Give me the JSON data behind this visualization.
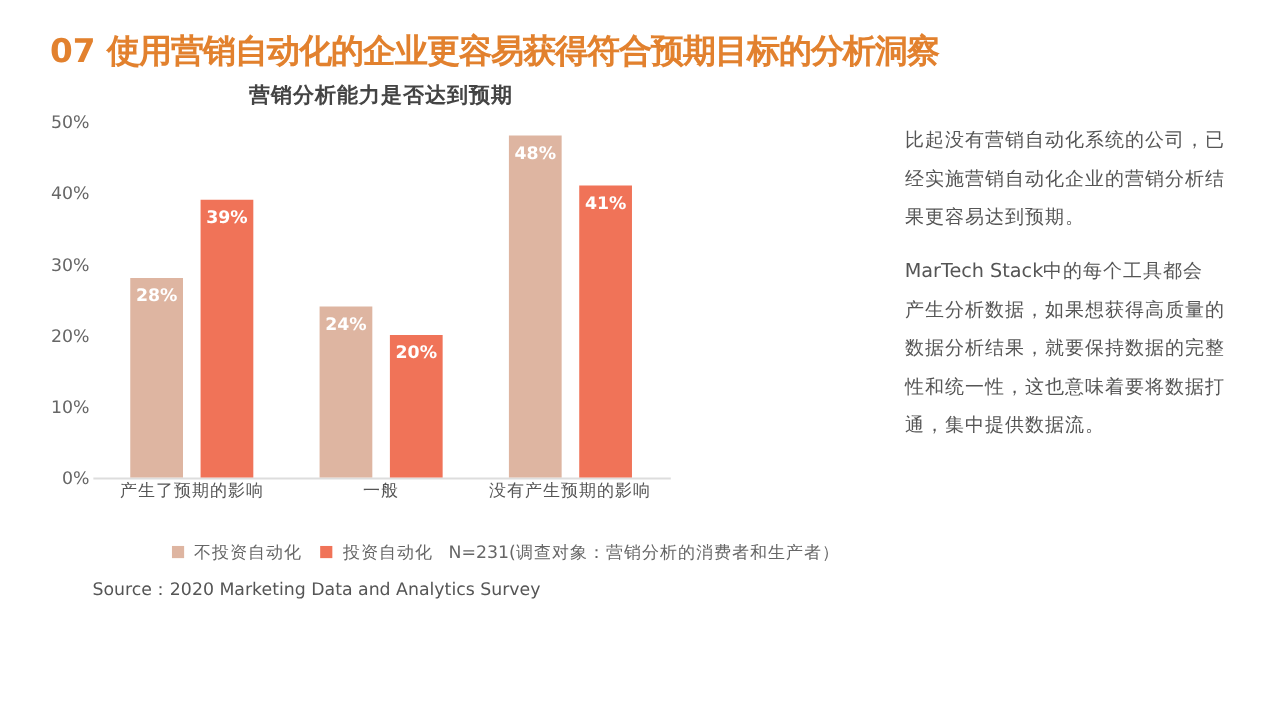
{
  "chart_data": {
    "type": "bar",
    "title": "07 使用营销自动化的企业更容易获得符合预期目标的分析洞察",
    "subtitle": "营销分析能力是否达到预期",
    "categories": [
      "产生了预期的影响",
      "一般",
      "没有产生预期的影响"
    ],
    "series": [
      {
        "name": "不投资自动化",
        "color": "#deb5a1",
        "values": [
          28,
          24,
          48
        ],
        "value_labels": [
          "28%",
          "24%",
          "48%"
        ]
      },
      {
        "name": "投资自动化",
        "color": "#f07358",
        "values": [
          39,
          20,
          41
        ],
        "value_labels": [
          "39%",
          "20%",
          "41%"
        ]
      }
    ],
    "ylim": [
      0,
      50
    ],
    "yticks": [
      {
        "value": 0,
        "label": "0%"
      },
      {
        "value": 10,
        "label": "10%"
      },
      {
        "value": 20,
        "label": "20%"
      },
      {
        "value": 30,
        "label": "30%"
      },
      {
        "value": 40,
        "label": "40%"
      },
      {
        "value": 50,
        "label": "50%"
      }
    ],
    "grid": false,
    "legend": "bottom",
    "annotations": [
      "N=231(调查对象：营销分析的消费者和生产者）",
      "Source：2020 Marketing Data and Analytics Survey",
      "比起没有营销自动化系统的公司，已经实施营销自动化企业的营销分析结果更容易达到预期。",
      "MarTech  Stack中的每个工具都会产生分析数据，如果想获得高质量的数据分析结果，就要保持数据的完整性和统一性，这也意味着要将数据打通，集中提供数据流。"
    ]
  }
}
